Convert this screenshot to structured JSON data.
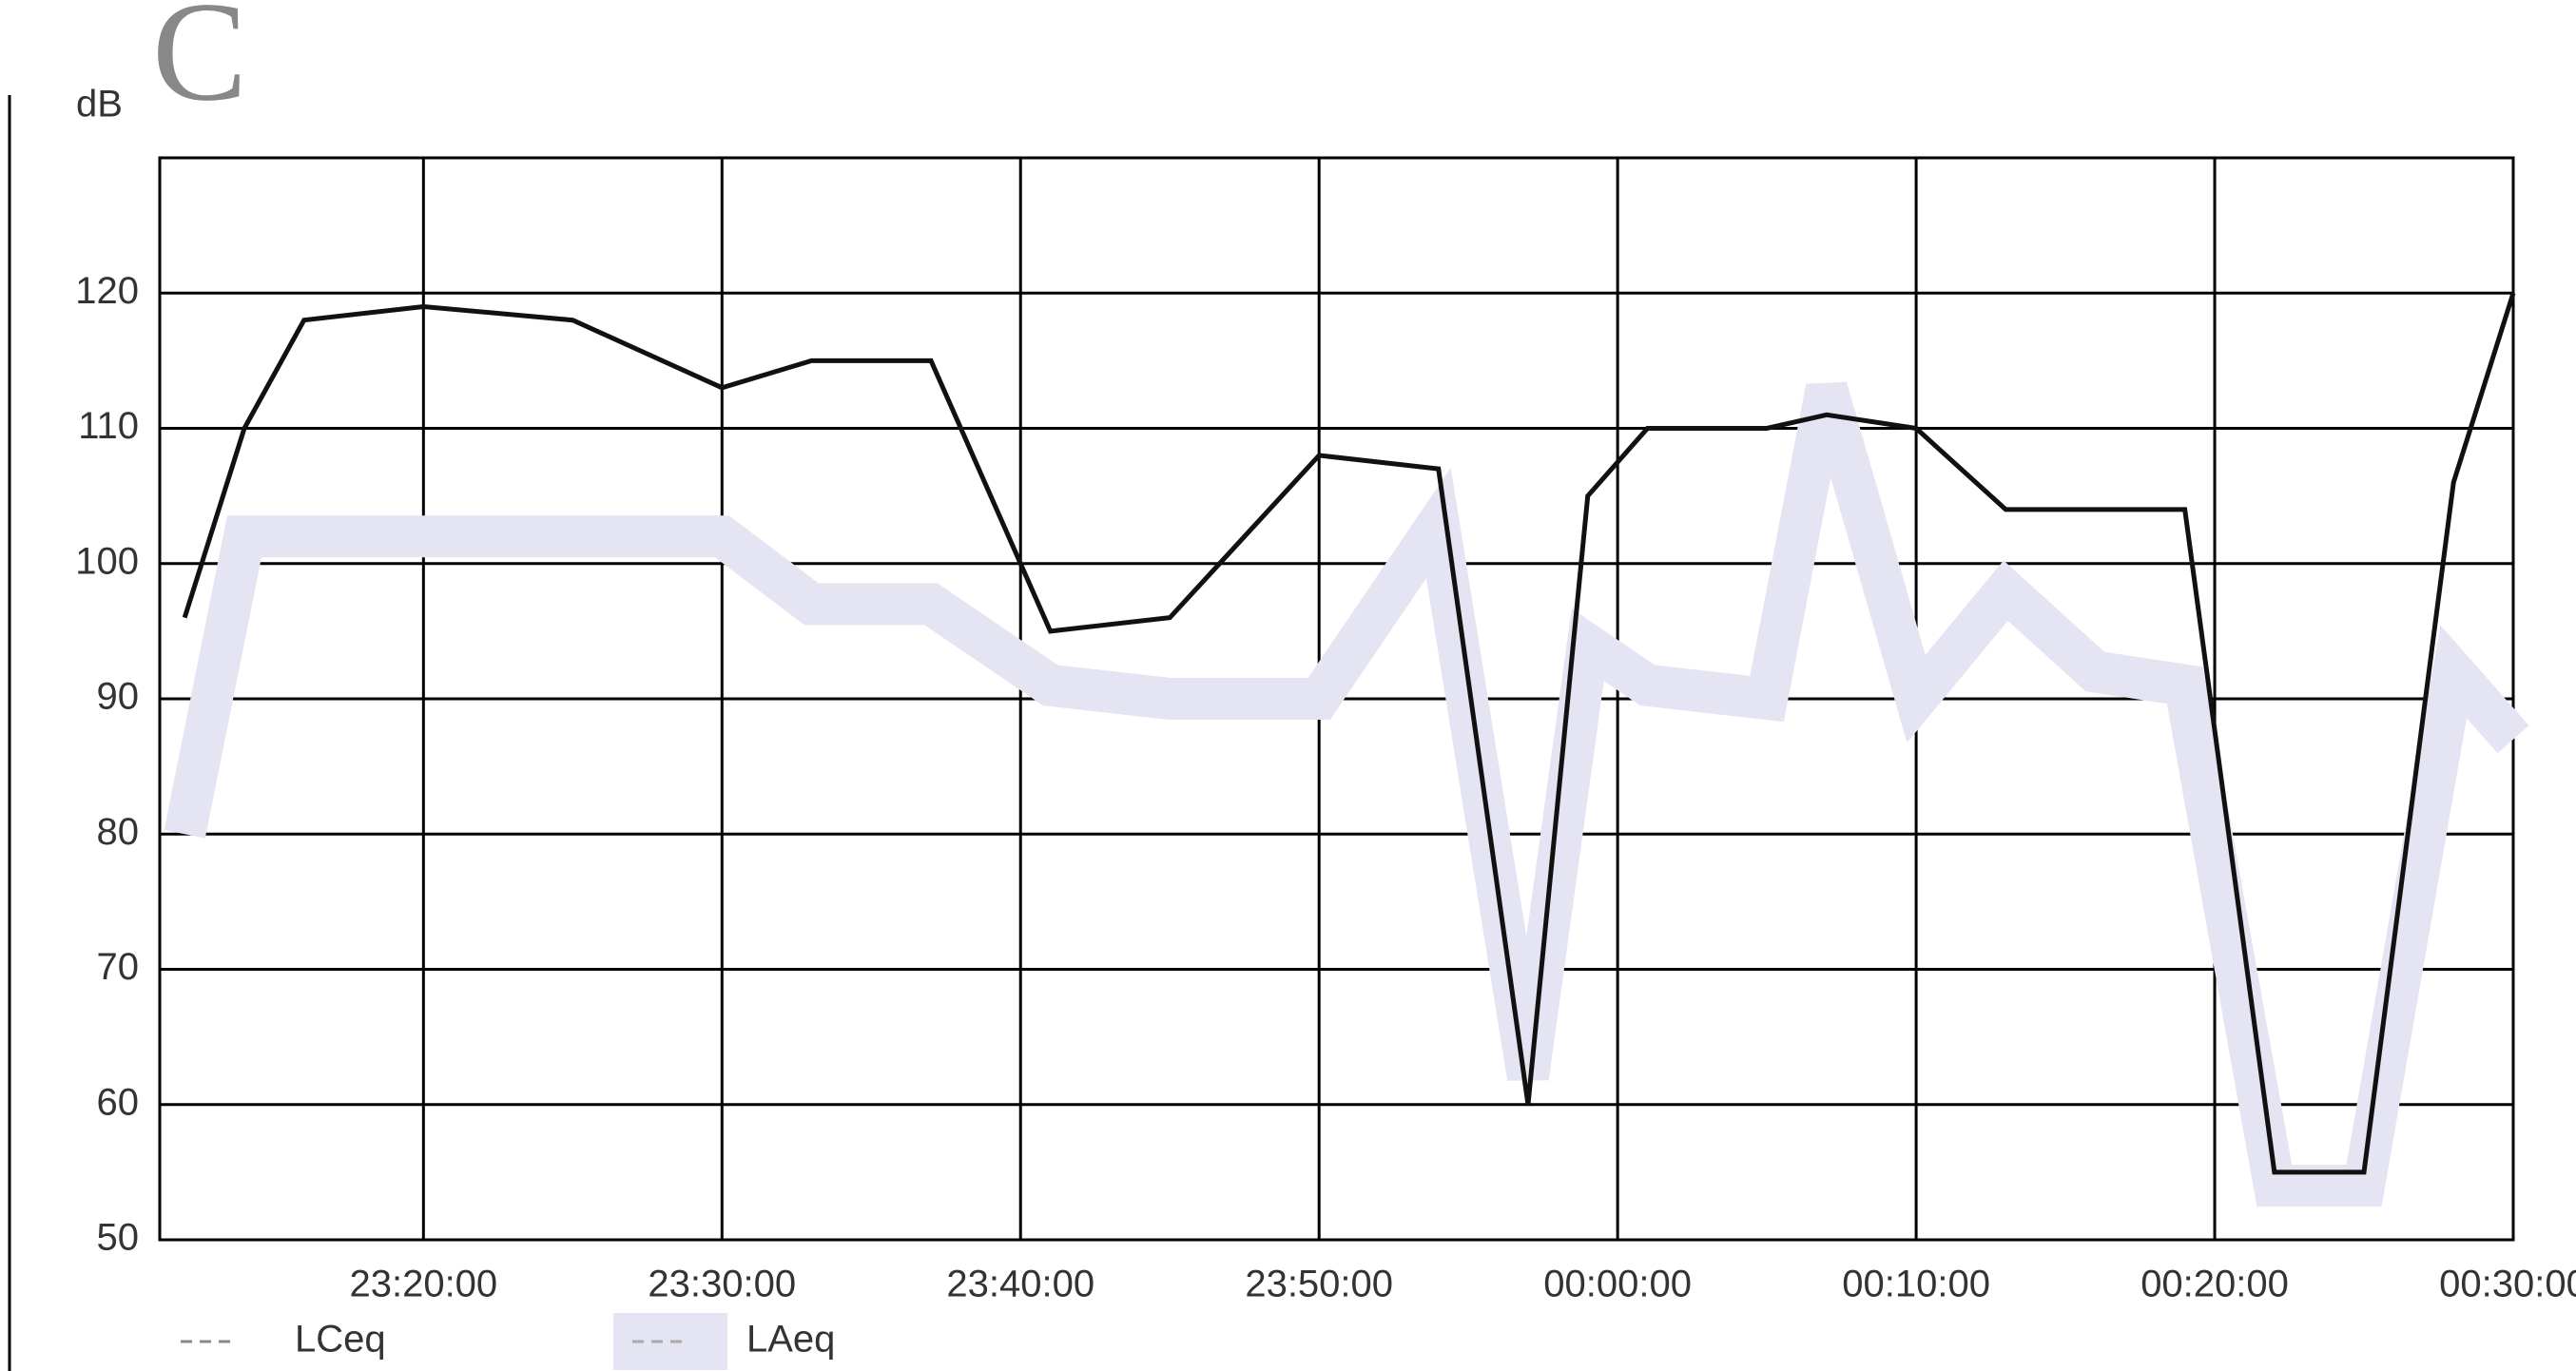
{
  "chart_data": {
    "type": "line",
    "title": "C",
    "y_label": "dB",
    "x": [
      "23:12:00",
      "23:14:00",
      "23:16:00",
      "23:20:00",
      "23:25:00",
      "23:30:00",
      "23:33:00",
      "23:37:00",
      "23:41:00",
      "23:45:00",
      "23:50:00",
      "23:54:00",
      "23:57:00",
      "23:59:00",
      "00:01:00",
      "00:05:00",
      "00:07:00",
      "00:10:00",
      "00:13:00",
      "00:16:00",
      "00:19:00",
      "00:22:00",
      "00:25:00",
      "00:28:00",
      "00:30:00"
    ],
    "series": [
      {
        "name": "LAeq",
        "color": "#e4e4f2",
        "values": [
          80,
          102,
          102,
          102,
          102,
          102,
          97,
          97,
          91,
          90,
          90,
          103,
          62,
          94,
          91,
          90,
          113,
          90,
          98,
          92,
          91,
          54,
          54,
          92,
          87
        ]
      },
      {
        "name": "LCeq",
        "color": "#111111",
        "values": [
          96,
          110,
          118,
          119,
          118,
          113,
          115,
          115,
          95,
          96,
          108,
          107,
          60,
          105,
          110,
          110,
          111,
          110,
          104,
          104,
          104,
          55,
          55,
          106,
          120
        ]
      }
    ],
    "xlim": [
      "23:11:10",
      "00:30:00"
    ],
    "xticks": [
      "23:20:00",
      "23:30:00",
      "23:40:00",
      "23:50:00",
      "00:00:00",
      "00:10:00",
      "00:20:00",
      "00:30:00"
    ],
    "ylim": [
      50,
      130
    ],
    "yticks": [
      50,
      60,
      70,
      80,
      90,
      100,
      110,
      120
    ],
    "grid": true,
    "legend": "bottom-left"
  }
}
